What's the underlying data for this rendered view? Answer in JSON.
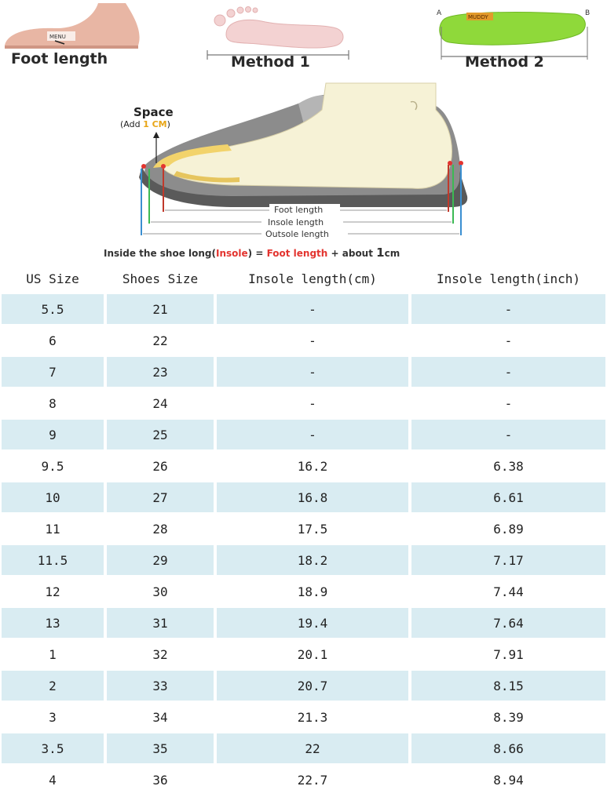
{
  "header_images": {
    "foot_length_label": "Foot length",
    "method1_label": "Method 1",
    "method2_label": "Method 2",
    "insole_ruler_mark": "MENU",
    "insole_brand": "MUDDY",
    "insole_end_a": "A",
    "insole_end_b": "B"
  },
  "diagram": {
    "space_label": "Space",
    "space_add_prefix": "(Add ",
    "space_add_value": "1 CM",
    "space_add_suffix": ")",
    "foot_length_label": "Foot length",
    "insole_length_label": "Insole length",
    "outsole_length_label": "Outsole length",
    "caption_prefix": "Inside the shoe long(",
    "caption_insole": "Insole",
    "caption_equals": ") = ",
    "caption_foot_length": "Foot length",
    "caption_suffix": " + about ",
    "caption_value": "1",
    "caption_unit": "cm",
    "colors": {
      "shoe_outer": "#8c8c8c",
      "shoe_sole": "#5a5a5a",
      "foot": "#f6f2d6",
      "insole": "#f2d36b",
      "accent_red": "#e3342f",
      "line_green": "#3cba54",
      "line_blue": "#3a8fd1",
      "line_red": "#c0392b"
    }
  },
  "table": {
    "headers": [
      "US Size",
      "Shoes Size",
      "Insole length(cm)",
      "Insole length(inch)"
    ],
    "rows": [
      [
        "5.5",
        "21",
        "-",
        "-"
      ],
      [
        "6",
        "22",
        "-",
        "-"
      ],
      [
        "7",
        "23",
        "-",
        "-"
      ],
      [
        "8",
        "24",
        "-",
        "-"
      ],
      [
        "9",
        "25",
        "-",
        "-"
      ],
      [
        "9.5",
        "26",
        "16.2",
        "6.38"
      ],
      [
        "10",
        "27",
        "16.8",
        "6.61"
      ],
      [
        "11",
        "28",
        "17.5",
        "6.89"
      ],
      [
        "11.5",
        "29",
        "18.2",
        "7.17"
      ],
      [
        "12",
        "30",
        "18.9",
        "7.44"
      ],
      [
        "13",
        "31",
        "19.4",
        "7.64"
      ],
      [
        "1",
        "32",
        "20.1",
        "7.91"
      ],
      [
        "2",
        "33",
        "20.7",
        "8.15"
      ],
      [
        "3",
        "34",
        "21.3",
        "8.39"
      ],
      [
        "3.5",
        "35",
        "22",
        "8.66"
      ],
      [
        "4",
        "36",
        "22.7",
        "8.94"
      ]
    ],
    "stripe_color": "#d9ecf2"
  }
}
